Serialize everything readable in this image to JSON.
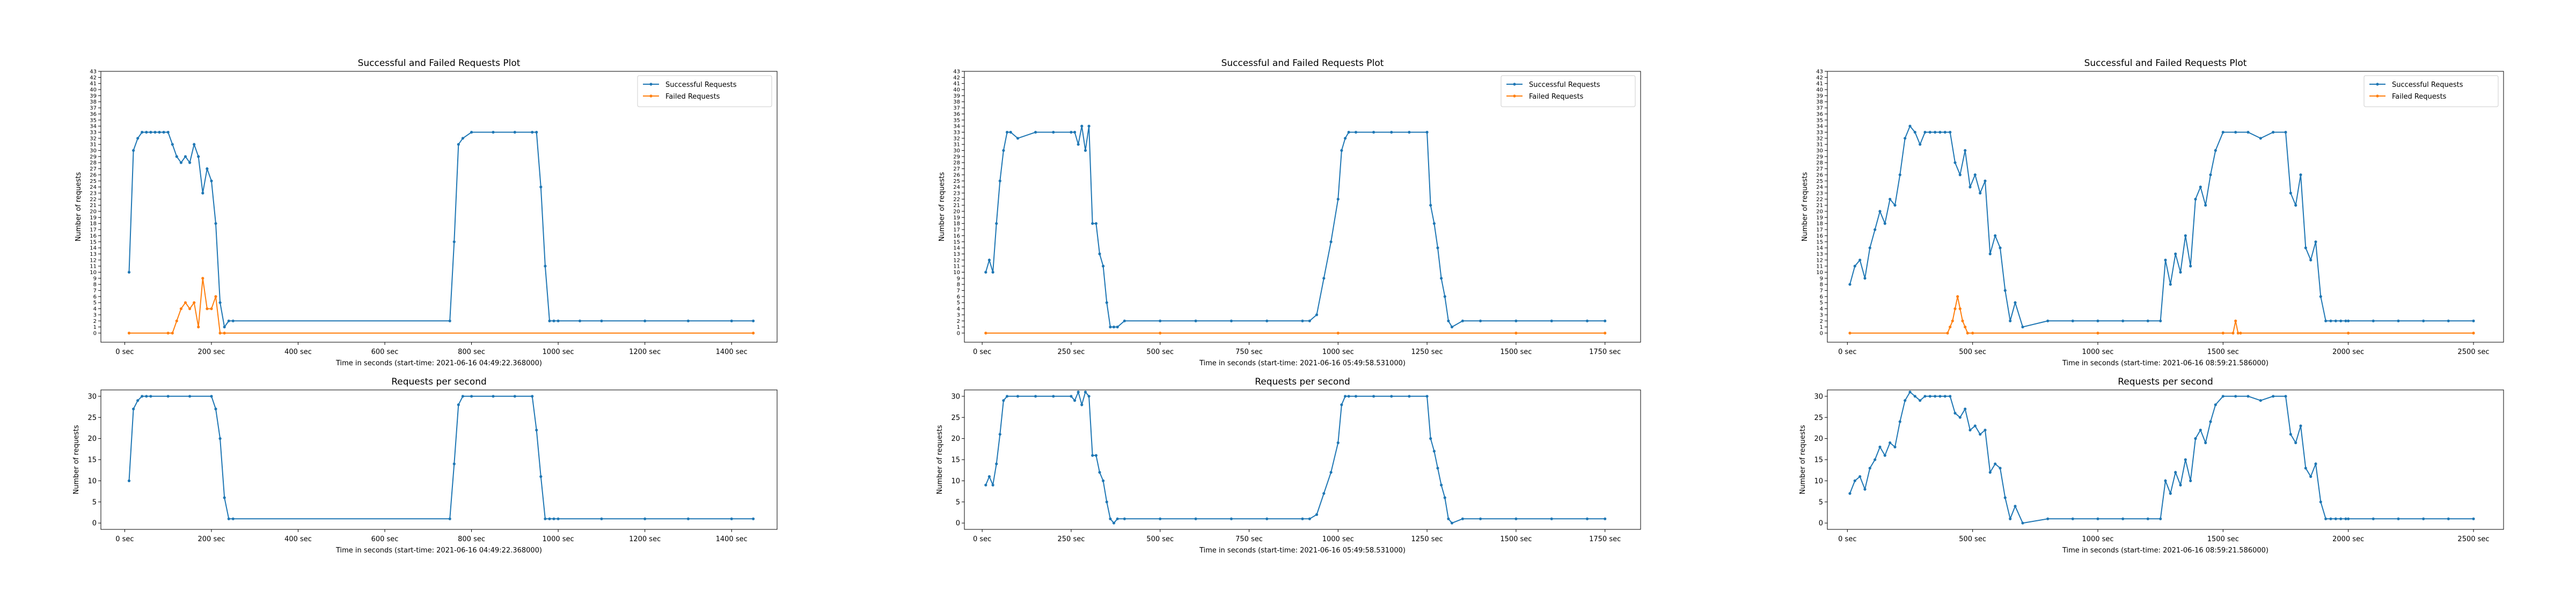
{
  "chart_data": [
    {
      "type": "line",
      "title": "Successful and Failed Requests Plot",
      "xlabel": "Time in seconds (start-time: 2021-06-16 04:49:22.368000)",
      "ylabel": "Number of requests",
      "xlim": [
        -55,
        1505
      ],
      "ylim": [
        -1.5,
        43
      ],
      "xticks": [
        0,
        200,
        400,
        600,
        800,
        1000,
        1200,
        1400
      ],
      "xtick_suffix": " sec",
      "yticks_step": 1,
      "legend": "top-right",
      "series": [
        {
          "name": "Successful Requests",
          "color": "#1f77b4",
          "marker": true,
          "x": [
            10,
            20,
            30,
            40,
            50,
            60,
            70,
            80,
            90,
            100,
            110,
            120,
            130,
            140,
            150,
            160,
            170,
            180,
            190,
            200,
            210,
            220,
            230,
            240,
            250,
            750,
            760,
            770,
            780,
            800,
            850,
            900,
            940,
            950,
            960,
            970,
            980,
            990,
            1000,
            1050,
            1100,
            1200,
            1300,
            1400,
            1450
          ],
          "y": [
            10,
            30,
            32,
            33,
            33,
            33,
            33,
            33,
            33,
            33,
            31,
            29,
            28,
            29,
            28,
            31,
            29,
            23,
            27,
            25,
            18,
            5,
            1,
            2,
            2,
            2,
            15,
            31,
            32,
            33,
            33,
            33,
            33,
            33,
            24,
            11,
            2,
            2,
            2,
            2,
            2,
            2,
            2,
            2,
            2
          ]
        },
        {
          "name": "Failed Requests",
          "color": "#ff7f0e",
          "marker": true,
          "x": [
            10,
            100,
            110,
            120,
            130,
            140,
            150,
            160,
            170,
            180,
            190,
            200,
            210,
            220,
            230,
            1450
          ],
          "y": [
            0,
            0,
            0,
            2,
            4,
            5,
            4,
            5,
            1,
            9,
            4,
            4,
            6,
            0,
            0,
            0
          ]
        }
      ]
    },
    {
      "type": "line",
      "title": "Requests per second",
      "xlabel": "Time in seconds (start-time: 2021-06-16 04:49:22.368000)",
      "ylabel": "Number of requests",
      "xlim": [
        -55,
        1505
      ],
      "ylim": [
        -1.5,
        31.5
      ],
      "xticks": [
        0,
        200,
        400,
        600,
        800,
        1000,
        1200,
        1400
      ],
      "xtick_suffix": " sec",
      "yticks": [
        0,
        5,
        10,
        15,
        20,
        25,
        30
      ],
      "series": [
        {
          "color": "#1f77b4",
          "marker": true,
          "x": [
            10,
            20,
            30,
            40,
            50,
            60,
            100,
            150,
            200,
            210,
            220,
            230,
            240,
            250,
            750,
            760,
            770,
            780,
            800,
            850,
            900,
            940,
            950,
            960,
            970,
            980,
            990,
            1000,
            1100,
            1200,
            1300,
            1400,
            1450
          ],
          "y": [
            10,
            27,
            29,
            30,
            30,
            30,
            30,
            30,
            30,
            27,
            20,
            6,
            1,
            1,
            1,
            14,
            28,
            30,
            30,
            30,
            30,
            30,
            22,
            11,
            1,
            1,
            1,
            1,
            1,
            1,
            1,
            1,
            1
          ]
        }
      ]
    },
    {
      "type": "line",
      "title": "Successful and Failed Requests Plot",
      "xlabel": "Time in seconds (start-time: 2021-06-16 05:49:58.531000)",
      "ylabel": "Number of requests",
      "xlim": [
        -50,
        1850
      ],
      "ylim": [
        -1.5,
        43
      ],
      "xticks": [
        0,
        250,
        500,
        750,
        1000,
        1250,
        1500,
        1750
      ],
      "xtick_suffix": " sec",
      "yticks_step": 1,
      "legend": "top-right",
      "series": [
        {
          "name": "Successful Requests",
          "color": "#1f77b4",
          "marker": true,
          "x": [
            10,
            20,
            30,
            40,
            50,
            60,
            70,
            80,
            100,
            150,
            200,
            250,
            260,
            270,
            280,
            290,
            300,
            310,
            320,
            330,
            340,
            350,
            360,
            370,
            380,
            400,
            500,
            600,
            700,
            800,
            900,
            920,
            940,
            960,
            980,
            1000,
            1010,
            1020,
            1030,
            1050,
            1100,
            1150,
            1200,
            1250,
            1260,
            1270,
            1280,
            1290,
            1300,
            1310,
            1320,
            1350,
            1400,
            1500,
            1600,
            1700,
            1750
          ],
          "y": [
            10,
            12,
            10,
            18,
            25,
            30,
            33,
            33,
            32,
            33,
            33,
            33,
            33,
            31,
            34,
            30,
            34,
            18,
            18,
            13,
            11,
            5,
            1,
            1,
            1,
            2,
            2,
            2,
            2,
            2,
            2,
            2,
            3,
            9,
            15,
            22,
            30,
            32,
            33,
            33,
            33,
            33,
            33,
            33,
            21,
            18,
            14,
            9,
            6,
            2,
            1,
            2,
            2,
            2,
            2,
            2,
            2
          ]
        },
        {
          "name": "Failed Requests",
          "color": "#ff7f0e",
          "marker": true,
          "x": [
            10,
            500,
            1000,
            1500,
            1750
          ],
          "y": [
            0,
            0,
            0,
            0,
            0
          ]
        }
      ]
    },
    {
      "type": "line",
      "title": "Requests per second",
      "xlabel": "Time in seconds (start-time: 2021-06-16 05:49:58.531000)",
      "ylabel": "Number of requests",
      "xlim": [
        -50,
        1850
      ],
      "ylim": [
        -1.5,
        31.5
      ],
      "xticks": [
        0,
        250,
        500,
        750,
        1000,
        1250,
        1500,
        1750
      ],
      "xtick_suffix": " sec",
      "yticks": [
        0,
        5,
        10,
        15,
        20,
        25,
        30
      ],
      "series": [
        {
          "color": "#1f77b4",
          "marker": true,
          "x": [
            10,
            20,
            30,
            40,
            50,
            60,
            70,
            100,
            150,
            200,
            250,
            260,
            270,
            280,
            290,
            300,
            310,
            320,
            330,
            340,
            350,
            360,
            370,
            380,
            400,
            500,
            600,
            700,
            800,
            900,
            920,
            940,
            960,
            980,
            1000,
            1010,
            1020,
            1030,
            1050,
            1100,
            1150,
            1200,
            1250,
            1260,
            1270,
            1280,
            1290,
            1300,
            1310,
            1320,
            1350,
            1400,
            1500,
            1600,
            1700,
            1750
          ],
          "y": [
            9,
            11,
            9,
            14,
            21,
            29,
            30,
            30,
            30,
            30,
            30,
            29,
            31,
            28,
            31,
            30,
            16,
            16,
            12,
            10,
            5,
            1,
            0,
            1,
            1,
            1,
            1,
            1,
            1,
            1,
            1,
            2,
            7,
            12,
            19,
            28,
            30,
            30,
            30,
            30,
            30,
            30,
            30,
            20,
            17,
            13,
            9,
            6,
            1,
            0,
            1,
            1,
            1,
            1,
            1,
            1
          ]
        }
      ]
    },
    {
      "type": "line",
      "title": "Successful and Failed Requests Plot",
      "xlabel": "Time in seconds (start-time: 2021-06-16 08:59:21.586000)",
      "ylabel": "Number of requests",
      "xlim": [
        -80,
        2620
      ],
      "ylim": [
        -1.5,
        43
      ],
      "xticks": [
        0,
        500,
        1000,
        1500,
        2000,
        2500
      ],
      "xtick_suffix": " sec",
      "yticks_step": 1,
      "legend": "top-right",
      "series": [
        {
          "name": "Successful Requests",
          "color": "#1f77b4",
          "marker": true,
          "x": [
            10,
            30,
            50,
            70,
            90,
            110,
            130,
            150,
            170,
            190,
            210,
            230,
            250,
            270,
            290,
            310,
            330,
            350,
            370,
            390,
            410,
            430,
            450,
            470,
            490,
            510,
            530,
            550,
            570,
            590,
            610,
            630,
            650,
            670,
            700,
            800,
            900,
            1000,
            1100,
            1200,
            1250,
            1270,
            1290,
            1310,
            1330,
            1350,
            1370,
            1390,
            1410,
            1430,
            1450,
            1470,
            1500,
            1550,
            1600,
            1650,
            1700,
            1750,
            1770,
            1790,
            1810,
            1830,
            1850,
            1870,
            1890,
            1910,
            1930,
            1950,
            1970,
            1990,
            2000,
            2100,
            2200,
            2300,
            2400,
            2500
          ],
          "y": [
            8,
            11,
            12,
            9,
            14,
            17,
            20,
            18,
            22,
            21,
            26,
            32,
            34,
            33,
            31,
            33,
            33,
            33,
            33,
            33,
            33,
            28,
            26,
            30,
            24,
            26,
            23,
            25,
            13,
            16,
            14,
            7,
            2,
            5,
            1,
            2,
            2,
            2,
            2,
            2,
            2,
            12,
            8,
            13,
            10,
            16,
            11,
            22,
            24,
            21,
            26,
            30,
            33,
            33,
            33,
            32,
            33,
            33,
            23,
            21,
            26,
            14,
            12,
            15,
            6,
            2,
            2,
            2,
            2,
            2,
            2,
            2,
            2,
            2,
            2,
            2
          ]
        },
        {
          "name": "Failed Requests",
          "color": "#ff7f0e",
          "marker": true,
          "x": [
            10,
            400,
            410,
            420,
            430,
            440,
            450,
            460,
            470,
            480,
            500,
            1000,
            1500,
            1540,
            1550,
            1560,
            1570,
            2000,
            2500
          ],
          "y": [
            0,
            0,
            1,
            2,
            4,
            6,
            4,
            2,
            1,
            0,
            0,
            0,
            0,
            0,
            2,
            0,
            0,
            0,
            0
          ]
        }
      ]
    },
    {
      "type": "line",
      "title": "Requests per second",
      "xlabel": "Time in seconds (start-time: 2021-06-16 08:59:21.586000)",
      "ylabel": "Number of requests",
      "xlim": [
        -80,
        2620
      ],
      "ylim": [
        -1.5,
        31.5
      ],
      "xticks": [
        0,
        500,
        1000,
        1500,
        2000,
        2500
      ],
      "xtick_suffix": " sec",
      "yticks": [
        0,
        5,
        10,
        15,
        20,
        25,
        30
      ],
      "series": [
        {
          "color": "#1f77b4",
          "marker": true,
          "x": [
            10,
            30,
            50,
            70,
            90,
            110,
            130,
            150,
            170,
            190,
            210,
            230,
            250,
            270,
            290,
            310,
            330,
            350,
            370,
            390,
            410,
            430,
            450,
            470,
            490,
            510,
            530,
            550,
            570,
            590,
            610,
            630,
            650,
            670,
            700,
            800,
            900,
            1000,
            1100,
            1200,
            1250,
            1270,
            1290,
            1310,
            1330,
            1350,
            1370,
            1390,
            1410,
            1430,
            1450,
            1470,
            1500,
            1550,
            1600,
            1650,
            1700,
            1750,
            1770,
            1790,
            1810,
            1830,
            1850,
            1870,
            1890,
            1910,
            1930,
            1950,
            1970,
            1990,
            2000,
            2100,
            2200,
            2300,
            2400,
            2500
          ],
          "y": [
            7,
            10,
            11,
            8,
            13,
            15,
            18,
            16,
            19,
            18,
            24,
            29,
            31,
            30,
            29,
            30,
            30,
            30,
            30,
            30,
            30,
            26,
            25,
            27,
            22,
            23,
            21,
            22,
            12,
            14,
            13,
            6,
            1,
            4,
            0,
            1,
            1,
            1,
            1,
            1,
            1,
            10,
            7,
            12,
            9,
            15,
            10,
            20,
            22,
            19,
            24,
            28,
            30,
            30,
            30,
            29,
            30,
            30,
            21,
            19,
            23,
            13,
            11,
            14,
            5,
            1,
            1,
            1,
            1,
            1,
            1,
            1,
            1,
            1,
            1,
            1
          ]
        }
      ]
    }
  ]
}
